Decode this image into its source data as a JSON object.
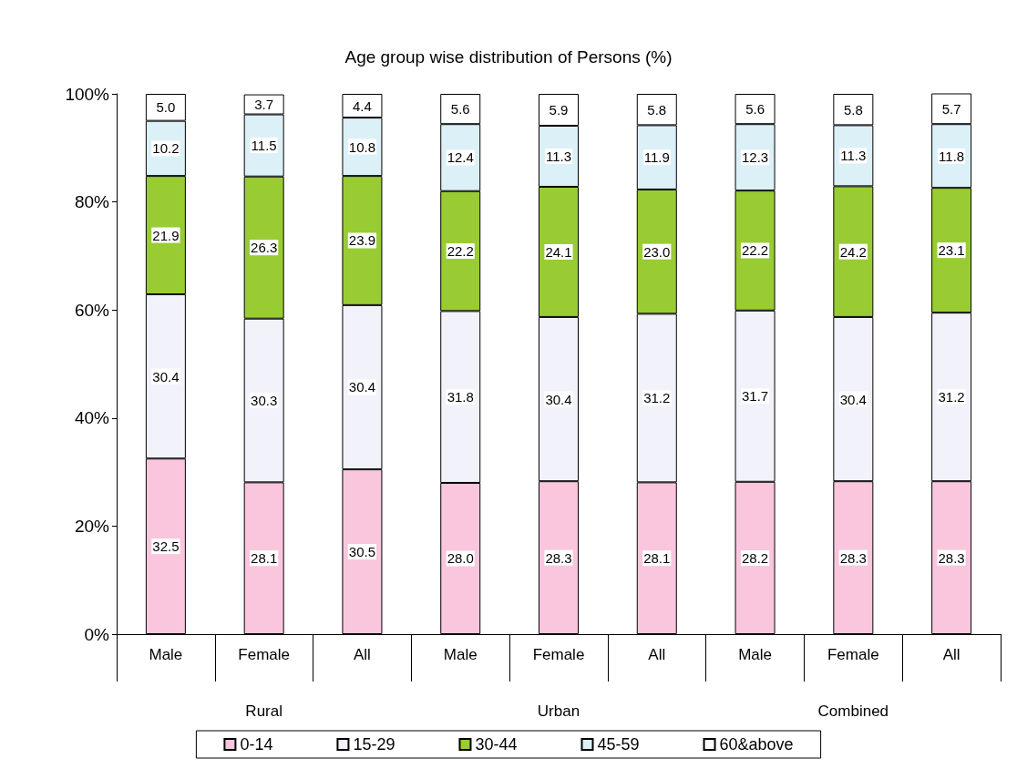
{
  "chart_data": {
    "type": "bar",
    "title": "Age group wise distribution of Persons (%)",
    "stacked": true,
    "categories": [
      "Male",
      "Female",
      "All",
      "Male",
      "Female",
      "All",
      "Male",
      "Female",
      "All"
    ],
    "series": [
      {
        "name": "0-14",
        "color": "#f9c6de",
        "values": [
          32.5,
          28.1,
          30.5,
          28.0,
          28.3,
          28.1,
          28.2,
          28.3,
          28.3
        ],
        "value_labels": [
          "32.5",
          "28.1",
          "30.5",
          "28.0",
          "28.3",
          "28.1",
          "28.2",
          "28.3",
          "28.3"
        ]
      },
      {
        "name": "15-29",
        "color": "#f2f2fa",
        "values": [
          30.4,
          30.3,
          30.4,
          31.8,
          30.4,
          31.2,
          31.7,
          30.4,
          31.2
        ],
        "value_labels": [
          "30.4",
          "30.3",
          "30.4",
          "31.8",
          "30.4",
          "31.2",
          "31.7",
          "30.4",
          "31.2"
        ]
      },
      {
        "name": "30-44",
        "color": "#99cc33",
        "values": [
          21.9,
          26.3,
          23.9,
          22.2,
          24.1,
          23.0,
          22.2,
          24.2,
          23.1
        ],
        "value_labels": [
          "21.9",
          "26.3",
          "23.9",
          "22.2",
          "24.1",
          "23.0",
          "22.2",
          "24.2",
          "23.1"
        ]
      },
      {
        "name": "45-59",
        "color": "#dcf0f8",
        "values": [
          10.2,
          11.5,
          10.8,
          12.4,
          11.3,
          11.9,
          12.3,
          11.3,
          11.8
        ],
        "value_labels": [
          "10.2",
          "11.5",
          "10.8",
          "12.4",
          "11.3",
          "11.9",
          "12.3",
          "11.3",
          "11.8"
        ]
      },
      {
        "name": "60&above",
        "color": "#ffffff",
        "values": [
          5.0,
          3.7,
          4.4,
          5.6,
          5.9,
          5.8,
          5.6,
          5.8,
          5.7
        ],
        "value_labels": [
          "5.0",
          "3.7",
          "4.4",
          "5.6",
          "5.9",
          "5.8",
          "5.6",
          "5.8",
          "5.7"
        ]
      }
    ],
    "ylim": [
      0,
      100
    ],
    "yticks": [
      {
        "value": 0,
        "label": "0%"
      },
      {
        "value": 20,
        "label": "20%"
      },
      {
        "value": 40,
        "label": "40%"
      },
      {
        "value": 60,
        "label": "60%"
      },
      {
        "value": 80,
        "label": "80%"
      },
      {
        "value": 100,
        "label": "100%"
      }
    ],
    "annotations": [
      "Rural",
      "Urban",
      "Combined"
    ],
    "grid": false,
    "legend": "bottom"
  }
}
